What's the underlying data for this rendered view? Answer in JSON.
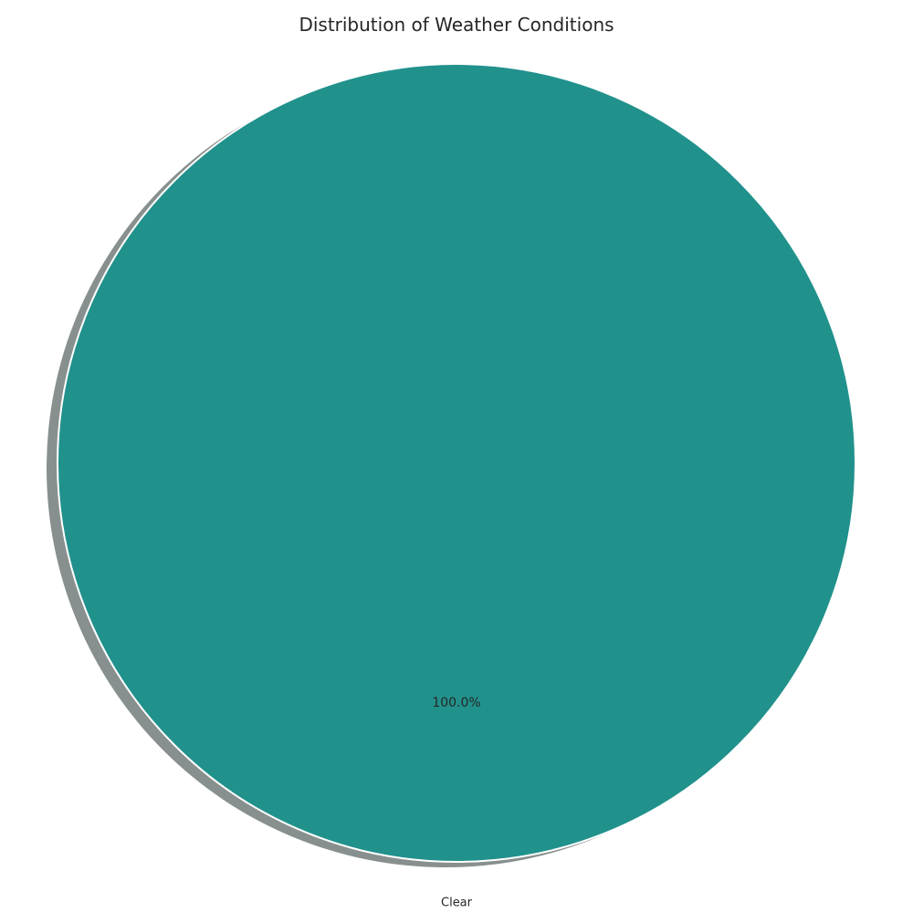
{
  "chart_data": {
    "type": "pie",
    "title": "Distribution of Weather Conditions",
    "slices": [
      {
        "label": "Clear",
        "value": 100.0,
        "percent_label": "100.0%",
        "color": "#21918c"
      }
    ],
    "shadow": true,
    "shadow_color": "#5f6b68",
    "edge_color": "#ffffff",
    "legend": "none"
  }
}
